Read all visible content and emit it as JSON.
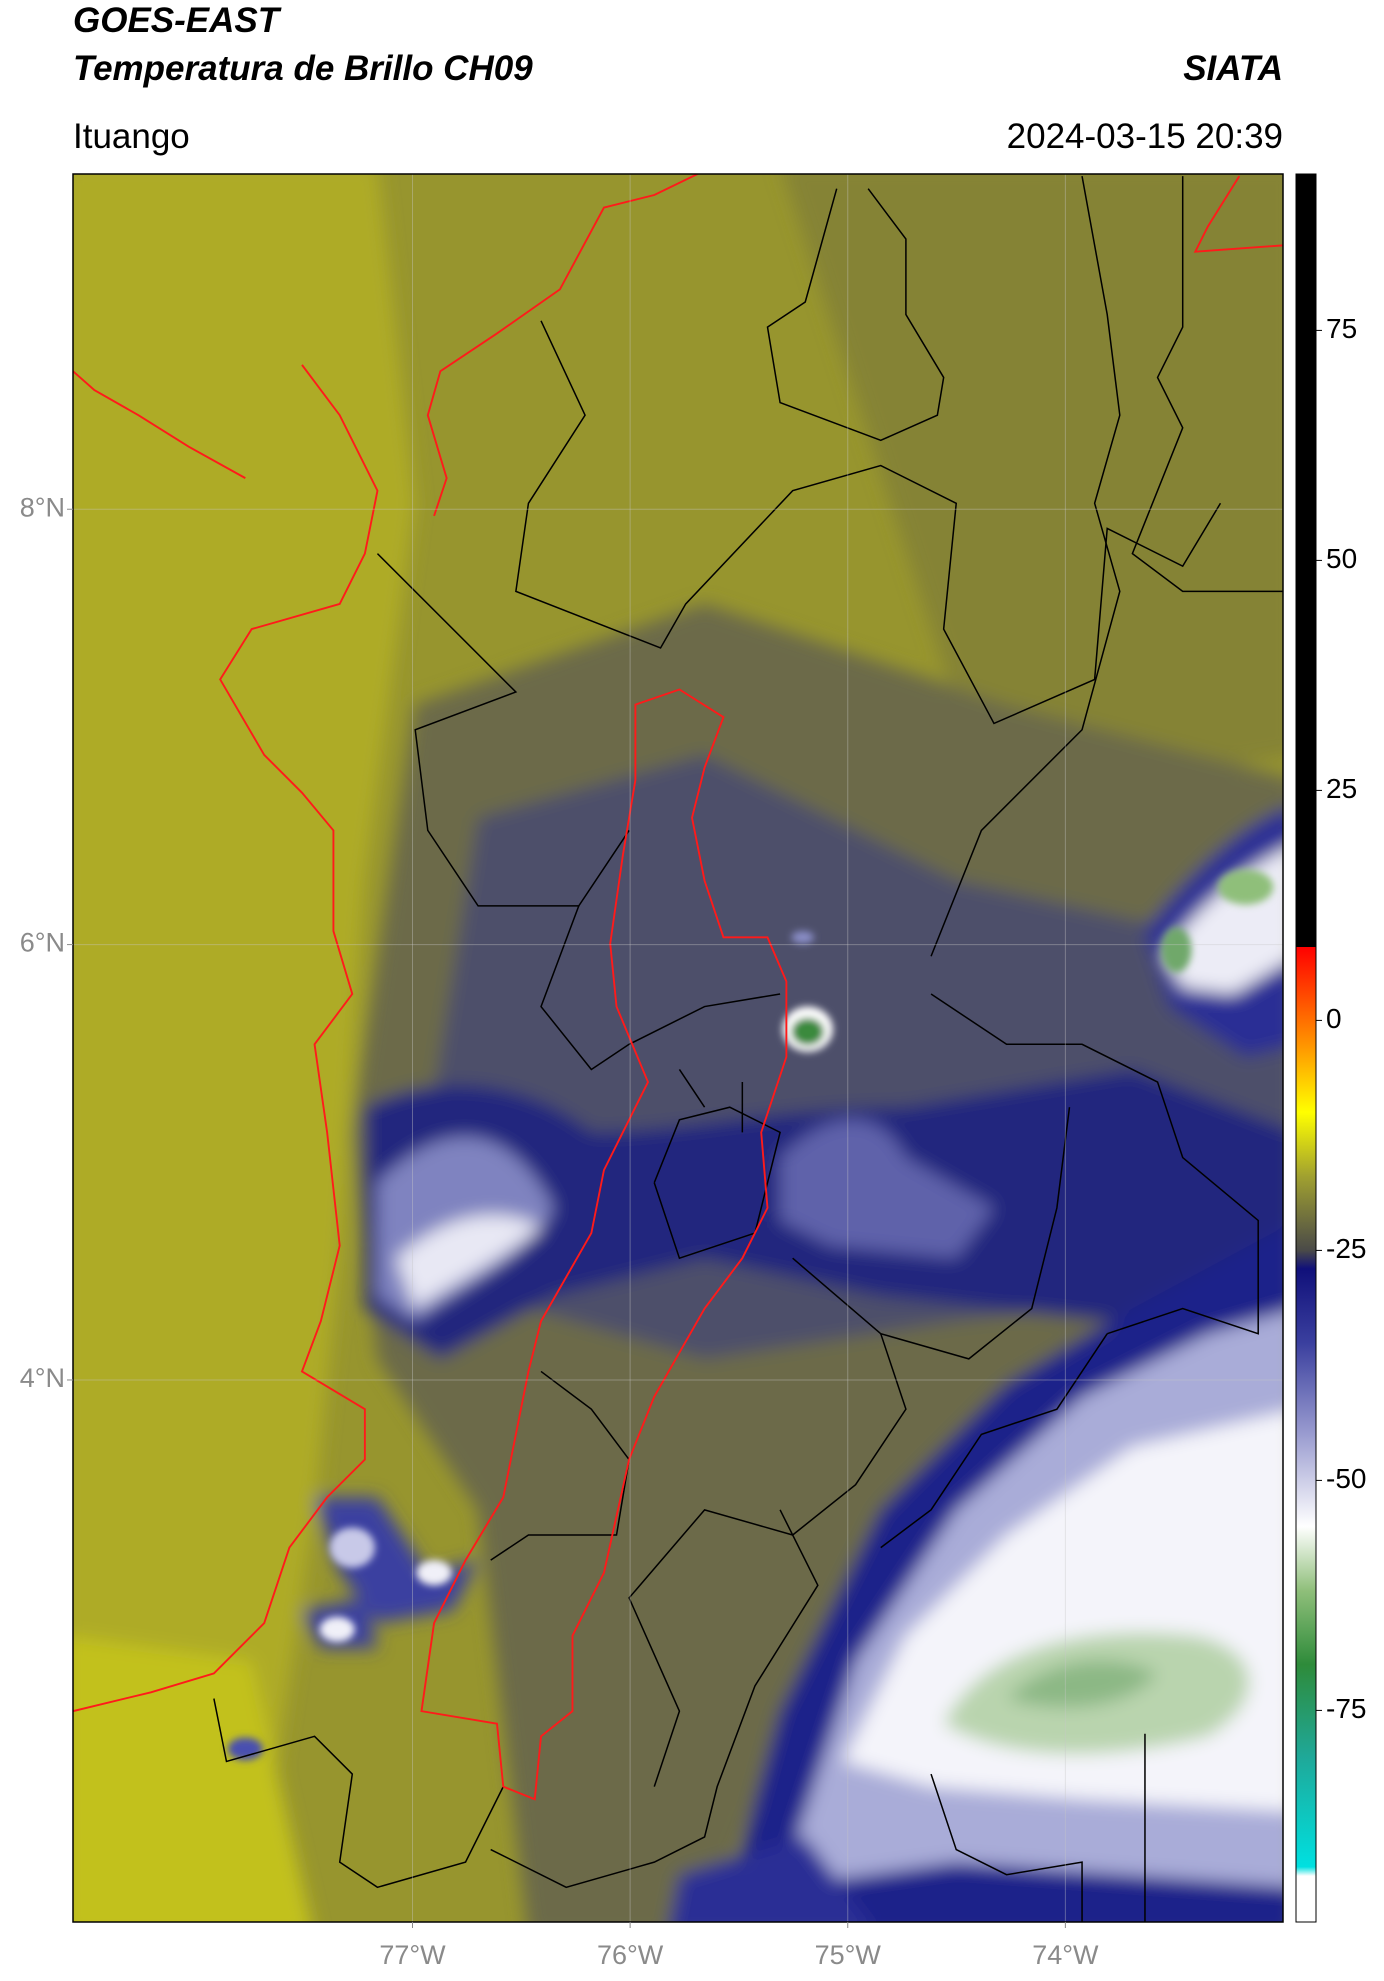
{
  "header": {
    "title": "GOES-EAST",
    "subtitle": "Temperatura de Brillo CH09",
    "agency": "SIATA",
    "region": "Ituango",
    "timestamp": "2024-03-15 20:39"
  },
  "map": {
    "lonlim": [
      -78.56,
      -73.0
    ],
    "latlim": [
      1.51,
      9.54
    ],
    "grid": true,
    "lonticks": [
      {
        "value": -77,
        "label": "77°W"
      },
      {
        "value": -76,
        "label": "76°W"
      },
      {
        "value": -75,
        "label": "75°W"
      },
      {
        "value": -74,
        "label": "74°W"
      }
    ],
    "latticks": [
      {
        "value": 8,
        "label": "8°N"
      },
      {
        "value": 6,
        "label": "6°N"
      },
      {
        "value": 4,
        "label": "4°N"
      }
    ]
  },
  "colorbar": {
    "lim": [
      -98,
      92
    ],
    "ticks": [
      75,
      50,
      25,
      0,
      -25,
      -50,
      -75
    ],
    "stops": [
      {
        "value": -98,
        "color": "#ffffff"
      },
      {
        "value": -93,
        "color": "#ffffff"
      },
      {
        "value": -92,
        "color": "#00e0e0"
      },
      {
        "value": -80,
        "color": "#1fa898"
      },
      {
        "value": -70,
        "color": "#2e8b3a"
      },
      {
        "value": -62,
        "color": "#8fbf7a"
      },
      {
        "value": -55,
        "color": "#ffffff"
      },
      {
        "value": -45,
        "color": "#9a9cd0"
      },
      {
        "value": -35,
        "color": "#3a3f9e"
      },
      {
        "value": -27,
        "color": "#10107a"
      },
      {
        "value": -25,
        "color": "#4a4a48"
      },
      {
        "value": -17,
        "color": "#a0a030"
      },
      {
        "value": -10,
        "color": "#ffff00"
      },
      {
        "value": -3,
        "color": "#ff9900"
      },
      {
        "value": 8,
        "color": "#ff0000"
      },
      {
        "value": 8,
        "color": "#000000"
      },
      {
        "value": 92,
        "color": "#000000"
      }
    ]
  }
}
